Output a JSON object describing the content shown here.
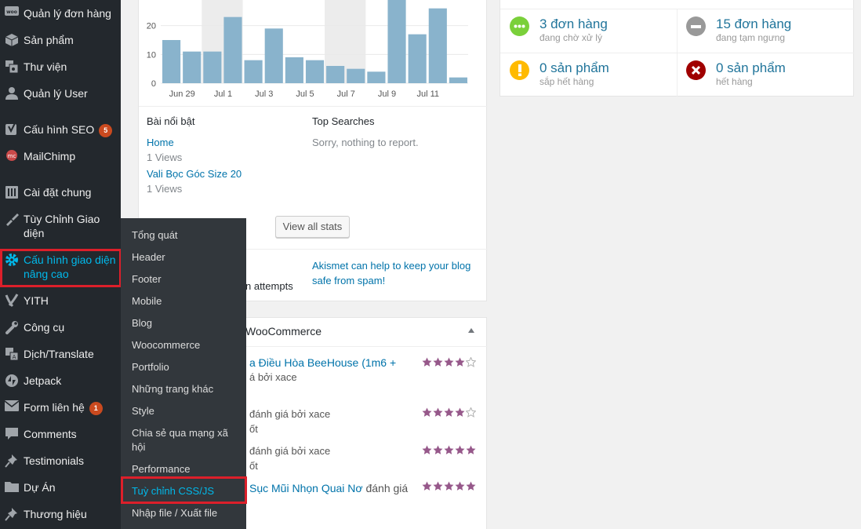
{
  "sidebar": {
    "items": [
      {
        "label": "Quản lý đơn hàng",
        "icon": "woo-icon"
      },
      {
        "label": "Sản phẩm",
        "icon": "box-icon"
      },
      {
        "label": "Thư viện",
        "icon": "media-icon"
      },
      {
        "label": "Quản lý User",
        "icon": "user-icon"
      },
      {
        "label": "Cấu hình SEO",
        "icon": "yoast-icon",
        "badge": "5"
      },
      {
        "label": "MailChimp",
        "icon": "mailchimp-icon"
      },
      {
        "label": "Cài đặt chung",
        "icon": "settings-icon"
      },
      {
        "label": "Tùy Chỉnh Giao diện",
        "icon": "brush-icon"
      },
      {
        "label": "Cấu hình giao diện nâng cao",
        "icon": "gear-icon"
      },
      {
        "label": "YITH",
        "icon": "yith-icon"
      },
      {
        "label": "Công cụ",
        "icon": "wrench-icon"
      },
      {
        "label": "Dịch/Translate",
        "icon": "translate-icon"
      },
      {
        "label": "Jetpack",
        "icon": "jetpack-icon"
      },
      {
        "label": "Form liên hệ",
        "icon": "mail-icon",
        "badge": "1"
      },
      {
        "label": "Comments",
        "icon": "comment-icon"
      },
      {
        "label": "Testimonials",
        "icon": "pin-icon"
      },
      {
        "label": "Dự Án",
        "icon": "folder-icon"
      },
      {
        "label": "Thương hiệu",
        "icon": "pin-icon"
      }
    ]
  },
  "flyout": {
    "items": [
      "Tổng quát",
      "Header",
      "Footer",
      "Mobile",
      "Blog",
      "Woocommerce",
      "Portfolio",
      "Những trang khác",
      "Style",
      "Chia sẻ qua mạng xã hội",
      "Performance",
      "Tuỳ chỉnh CSS/JS",
      "Nhập file / Xuất file"
    ]
  },
  "stats": {
    "chart_data": {
      "type": "bar",
      "ytick_labels": [
        "0",
        "10",
        "20"
      ],
      "ylim": [
        0,
        30
      ],
      "xtick_labels": [
        "Jun 29",
        "Jul 1",
        "Jul 3",
        "Jul 5",
        "Jul 7",
        "Jul 9",
        "Jul 11"
      ],
      "values": [
        15,
        11,
        11,
        23,
        8,
        19,
        9,
        8,
        6,
        5,
        4,
        30,
        17,
        26,
        2
      ]
    },
    "top_posts": {
      "title": "Bài nổi bật",
      "items": [
        {
          "name": "Home",
          "views": "1 Views"
        },
        {
          "name": "Vali Bọc Góc Size 20",
          "views": "1 Views"
        }
      ]
    },
    "top_searches": {
      "title": "Top Searches",
      "empty": "Sorry, nothing to report."
    },
    "view_all": "View all stats"
  },
  "akismet": {
    "left_text": "n attempts",
    "right_text": "Akismet can help to keep your blog safe from spam!"
  },
  "reviews": {
    "title": "WooCommerce",
    "items": [
      {
        "line1": "a Điều Hòa BeeHouse (1m6 +",
        "line2": "á bởi xace",
        "rating": 4
      },
      {
        "line1": "đánh giá bởi xace",
        "line2": "ốt",
        "rating": 4
      },
      {
        "line1": "đánh giá bởi xace",
        "line2": "ốt",
        "rating": 5
      },
      {
        "line1_link": "Sục Mũi Nhọn Quai Nơ",
        "line1_rest": " đánh giá",
        "rating": 5
      }
    ]
  },
  "orders": {
    "cells": [
      {
        "main": "3 đơn hàng",
        "sub": "đang chờ xử lý",
        "color": "#7ad03a",
        "icon": "dots-icon"
      },
      {
        "main": "15 đơn hàng",
        "sub": "đang tạm ngưng",
        "color": "#999999",
        "icon": "minus-icon"
      },
      {
        "main": "0 sản phẩm",
        "sub": "sắp hết hàng",
        "color": "#ffba00",
        "icon": "warning-icon"
      },
      {
        "main": "0 sản phẩm",
        "sub": "hết hàng",
        "color": "#a00000",
        "icon": "x-icon"
      }
    ]
  },
  "colors": {
    "bar": "#89b3cc",
    "highlight": "#00b9eb",
    "sidebar": "#23282d",
    "flyout": "#32373c",
    "redbox": "#dc1f2a",
    "star": "#96588a"
  }
}
